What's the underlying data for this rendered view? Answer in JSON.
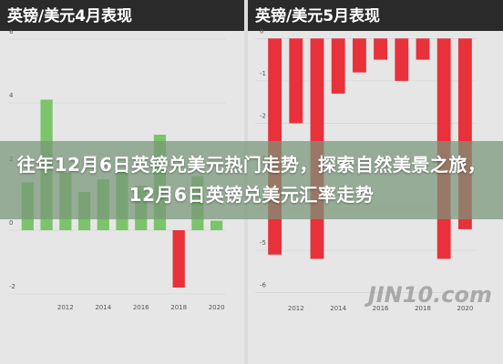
{
  "chart_data": [
    {
      "type": "bar",
      "title": "英镑/美元4月表现",
      "categories": [
        null,
        null,
        "2012",
        null,
        "2014",
        null,
        "2016",
        null,
        "2018",
        null,
        "2020"
      ],
      "values": [
        1.5,
        4.1,
        1.8,
        1.2,
        1.6,
        1.9,
        1.4,
        3.0,
        -1.8,
        1.7,
        0.3
      ],
      "color": "#7cc46c",
      "negative_color": "#e8313a",
      "ylim": [
        -2.2,
        6.2
      ],
      "yticks": [
        -2,
        0,
        2,
        4,
        6
      ],
      "grid": true
    },
    {
      "type": "bar",
      "title": "英镑/美元5月表现",
      "categories": [
        null,
        "2012",
        null,
        "2014",
        null,
        "2016",
        null,
        "2018",
        null,
        "2020"
      ],
      "values": [
        -5.1,
        -2.0,
        -5.2,
        -1.3,
        -0.8,
        -0.5,
        -1.0,
        -0.5,
        -5.2,
        -4.5
      ],
      "color": "#7cc46c",
      "negative_color": "#e8313a",
      "ylim": [
        -6.2,
        0.2
      ],
      "yticks": [
        -6,
        -5,
        -4,
        -3,
        -2,
        -1,
        0
      ],
      "grid": true
    }
  ],
  "headline": "往年12月6日英镑兑美元热门走势，探索自然美景之旅，12月6日英镑兑美元汇率走势",
  "watermark": "JIN10.com"
}
